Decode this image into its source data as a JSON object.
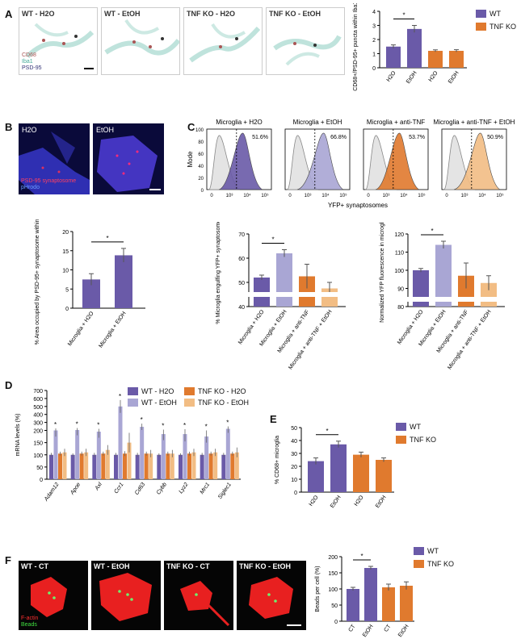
{
  "panels": {
    "A": "A",
    "B": "B",
    "C": "C",
    "D": "D",
    "E": "E",
    "F": "F"
  },
  "colors": {
    "wt": "#6a5aa8",
    "wt_etoh": "#a9a6d4",
    "tnf": "#e07a2e",
    "tnf_etoh": "#f2bd84",
    "water": "#e4e4e4"
  },
  "A": {
    "images": [
      "WT - H2O",
      "WT - EtOH",
      "TNF KO - H2O",
      "TNF KO - EtOH"
    ],
    "stain": [
      "CD68",
      "Iba1",
      "PSD-95"
    ],
    "legend": [
      "WT",
      "TNF KO"
    ]
  },
  "B": {
    "images": [
      "H2O",
      "EtOH"
    ],
    "stain": [
      "PSD-95 synaptosome",
      "pHrodo"
    ]
  },
  "C": {
    "hist_titles": [
      "Microglia + H2O",
      "Microglia + EtOH",
      "Microglia + anti-TNF",
      "Microglia + anti-TNF + EtOH"
    ],
    "percents": [
      "51.6%",
      "66.8%",
      "53.7%",
      "50.9%"
    ],
    "ylabel": "Mode",
    "xlabel": "YFP+ synaptosomes",
    "yticks": [
      "100",
      "80",
      "60",
      "40",
      "20",
      "0"
    ],
    "xticks": [
      "0",
      "10³",
      "10⁴",
      "10⁵"
    ]
  },
  "D": {
    "legend": [
      "WT - H2O",
      "WT - EtOH",
      "TNF KO - H2O",
      "TNF KO - EtOH"
    ]
  },
  "E": {
    "legend": [
      "WT",
      "TNF KO"
    ]
  },
  "F": {
    "images": [
      "WT - CT",
      "WT - EtOH",
      "TNF KO - CT",
      "TNF KO - EtOH"
    ],
    "stain": [
      "F-actin",
      "Beads"
    ],
    "legend": [
      "WT",
      "TNF KO"
    ]
  },
  "chart_data": [
    {
      "id": "A",
      "type": "bar",
      "ylabel": "CD68+/PSD-95+ puncta within Iba1+ cell",
      "categories": [
        "H2O",
        "EtOH",
        "H2O",
        "EtOH"
      ],
      "values": [
        1.5,
        2.75,
        1.2,
        1.2
      ],
      "errors": [
        0.12,
        0.25,
        0.07,
        0.08
      ],
      "ylim": [
        0,
        4
      ],
      "yticks": [
        0,
        1,
        2,
        3,
        4
      ],
      "sig": [
        [
          0,
          1
        ]
      ]
    },
    {
      "id": "B",
      "type": "bar",
      "ylabel": "% Area occupied by PSD-95+ synaptosome within microglia",
      "categories": [
        "Microglia + H2O",
        "Microglia + EtOH"
      ],
      "values": [
        7.5,
        13.8
      ],
      "errors": [
        1.5,
        1.8
      ],
      "ylim": [
        0,
        20
      ],
      "yticks": [
        0,
        5,
        10,
        15,
        20
      ],
      "sig": [
        [
          0,
          1
        ]
      ]
    },
    {
      "id": "C1",
      "type": "bar",
      "ylabel": "% Microglia engulfing YFP+ synaptosomes",
      "categories": [
        "Microglia + H2O",
        "Microglia + EtOH",
        "Microglia + anti-TNF",
        "Microglia + anti-TNF + EtOH"
      ],
      "values": [
        52,
        62,
        52.5,
        47.5
      ],
      "errors": [
        1,
        1.5,
        5,
        2.5
      ],
      "ylim": [
        40,
        70
      ],
      "yticks": [
        40,
        50,
        60,
        70
      ],
      "sig": [
        [
          0,
          1
        ]
      ]
    },
    {
      "id": "C2",
      "type": "bar",
      "ylabel": "Normalized YFP fluorescence in microglia",
      "categories": [
        "Microglia + H2O",
        "Microglia + EtOH",
        "Microglia + anti-TNF",
        "Microglia + anti-TNF + EtOH"
      ],
      "values": [
        100,
        114,
        97,
        93
      ],
      "errors": [
        1,
        2,
        7,
        4
      ],
      "ylim": [
        80,
        120
      ],
      "yticks": [
        80,
        90,
        100,
        110,
        120
      ],
      "sig": [
        [
          0,
          1
        ]
      ]
    },
    {
      "id": "D",
      "type": "bar",
      "ylabel": "mRNA levels (%)",
      "categories": [
        "Adam12",
        "Apoe",
        "Axl",
        "Ccr1",
        "Cd63",
        "Cybb",
        "Lyz2",
        "Mrc1",
        "Siglec1"
      ],
      "series": [
        {
          "name": "WT - H2O",
          "values": [
            100,
            100,
            100,
            100,
            100,
            100,
            100,
            100,
            100
          ]
        },
        {
          "name": "WT - EtOH",
          "values": [
            200,
            205,
            195,
            500,
            245,
            185,
            185,
            175,
            220
          ]
        },
        {
          "name": "TNF KO - H2O",
          "values": [
            105,
            105,
            105,
            105,
            105,
            105,
            105,
            105,
            105
          ]
        },
        {
          "name": "TNF KO - EtOH",
          "values": [
            110,
            110,
            120,
            150,
            105,
            105,
            110,
            110,
            110
          ]
        }
      ],
      "errors": [
        [
          8,
          6,
          8,
          8,
          8,
          6,
          6,
          8,
          8
        ],
        [
          25,
          25,
          25,
          80,
          40,
          25,
          30,
          25,
          30
        ],
        [
          8,
          8,
          8,
          10,
          8,
          8,
          8,
          8,
          8
        ],
        [
          15,
          15,
          20,
          40,
          15,
          15,
          15,
          15,
          20
        ]
      ],
      "ylim": [
        0,
        700
      ],
      "yticks": [
        0,
        50,
        100,
        150,
        200,
        300,
        400,
        500,
        600,
        700
      ],
      "sig_cats": [
        0,
        1,
        2,
        3,
        4,
        5,
        6,
        7,
        8
      ]
    },
    {
      "id": "E",
      "type": "bar",
      "ylabel": "% CD68+ microglia",
      "categories": [
        "H2O",
        "EtOH",
        "H2O",
        "EtOH"
      ],
      "values": [
        24,
        37,
        29,
        25
      ],
      "errors": [
        2.5,
        2.5,
        2,
        1.5
      ],
      "ylim": [
        0,
        50
      ],
      "yticks": [
        0,
        10,
        20,
        30,
        40,
        50
      ],
      "sig": [
        [
          0,
          1
        ]
      ]
    },
    {
      "id": "F",
      "type": "bar",
      "ylabel": "Beads per cell (%)",
      "categories": [
        "CT",
        "EtOH",
        "CT",
        "EtOH"
      ],
      "values": [
        100,
        165,
        105,
        110
      ],
      "errors": [
        5,
        5,
        10,
        12
      ],
      "ylim": [
        0,
        200
      ],
      "yticks": [
        0,
        50,
        100,
        150,
        200
      ],
      "sig": [
        [
          0,
          1
        ]
      ]
    }
  ]
}
